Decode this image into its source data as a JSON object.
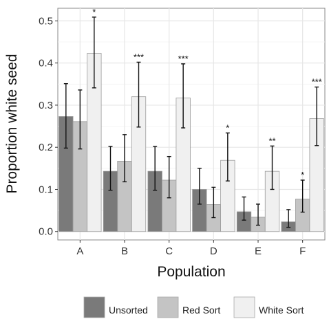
{
  "chart_data": {
    "type": "bar",
    "xlabel": "Population",
    "ylabel": "Proportion white seed",
    "categories": [
      "A",
      "B",
      "C",
      "D",
      "E",
      "F"
    ],
    "ylim": [
      -0.02,
      0.53
    ],
    "yticks": [
      0.0,
      0.1,
      0.2,
      0.3,
      0.4,
      0.5
    ],
    "ytick_labels": [
      "0.0",
      "0.1",
      "0.2",
      "0.3",
      "0.4",
      "0.5"
    ],
    "grid": true,
    "legend_position": "bottom",
    "series": [
      {
        "name": "Unsorted",
        "color": "#7a7a7a",
        "values": [
          0.273,
          0.143,
          0.143,
          0.1,
          0.047,
          0.023
        ],
        "err_low": [
          0.198,
          0.098,
          0.098,
          0.065,
          0.027,
          0.01
        ],
        "err_high": [
          0.351,
          0.202,
          0.202,
          0.15,
          0.082,
          0.052
        ],
        "sig": [
          "",
          "",
          "",
          "",
          "",
          ""
        ]
      },
      {
        "name": "Red Sort",
        "color": "#c4c4c4",
        "values": [
          0.261,
          0.167,
          0.122,
          0.064,
          0.034,
          0.077
        ],
        "err_low": [
          0.196,
          0.118,
          0.08,
          0.033,
          0.015,
          0.046
        ],
        "err_high": [
          0.336,
          0.23,
          0.178,
          0.105,
          0.065,
          0.122
        ],
        "sig": [
          "",
          "",
          "",
          "",
          "",
          "*"
        ]
      },
      {
        "name": "White Sort",
        "color": "#f0f0f0",
        "values": [
          0.423,
          0.32,
          0.317,
          0.169,
          0.143,
          0.268
        ],
        "err_low": [
          0.341,
          0.248,
          0.246,
          0.12,
          0.1,
          0.204
        ],
        "err_high": [
          0.509,
          0.402,
          0.398,
          0.234,
          0.203,
          0.343
        ],
        "sig": [
          "*",
          "***",
          "***",
          "*",
          "**",
          "***"
        ]
      }
    ]
  }
}
